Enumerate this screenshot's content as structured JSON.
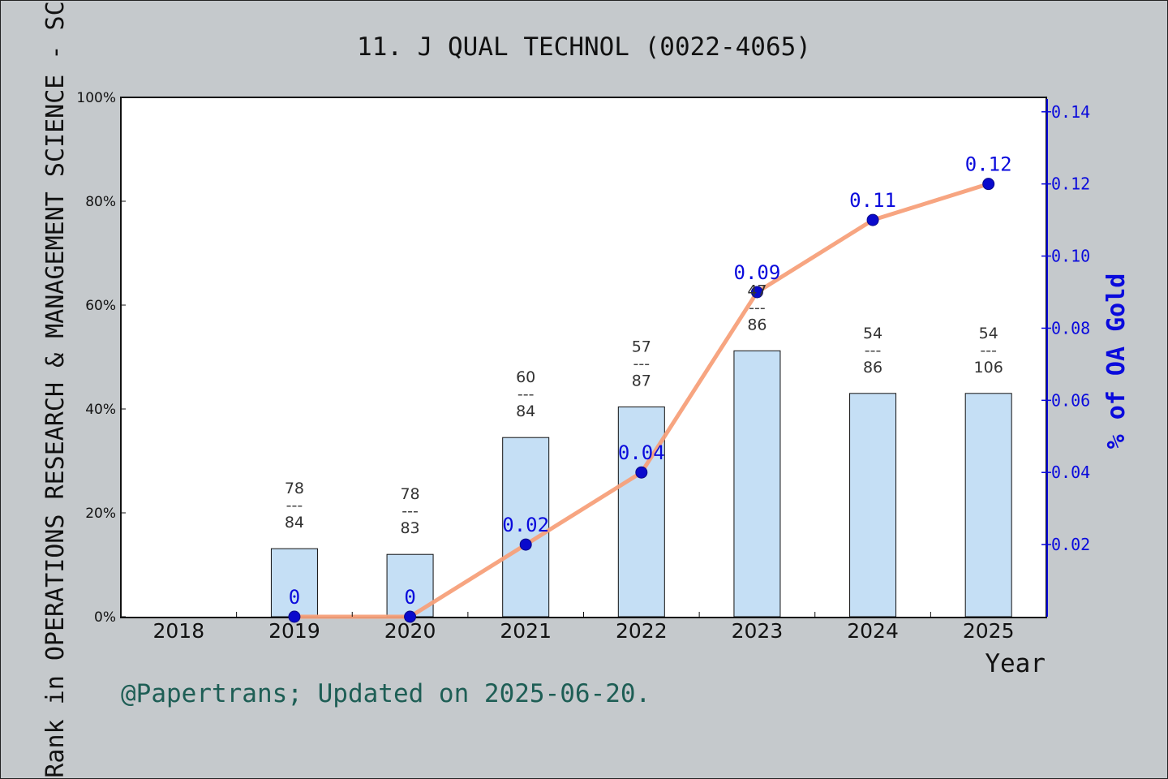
{
  "chart_data": {
    "type": "bar+line",
    "title": "11. J QUAL TECHNOL (0022-4065)",
    "xlabel": "Year",
    "ylabel_left": "Rank in OPERATIONS RESEARCH & MANAGEMENT SCIENCE - SC",
    "ylabel_right": "% of OA Gold",
    "categories": [
      "2018",
      "2019",
      "2020",
      "2021",
      "2022",
      "2023",
      "2024",
      "2025"
    ],
    "bar_series": {
      "values_percent": [
        null,
        13.1,
        12.0,
        34.5,
        40.4,
        51.2,
        43.0,
        43.0
      ],
      "rank": [
        null,
        "78",
        "78",
        "60",
        "57",
        "47",
        "54",
        "54"
      ],
      "total": [
        null,
        "84",
        "83",
        "84",
        "87",
        "86",
        "86",
        "106"
      ],
      "color": "#c5dff5"
    },
    "line_series": {
      "values": [
        null,
        0,
        0,
        0.02,
        0.04,
        0.09,
        0.11,
        0.12
      ],
      "labels": [
        null,
        "0",
        "0",
        "0.02",
        "0.04",
        "0.09",
        "0.11",
        "0.12"
      ],
      "line_color": "#f7a07a",
      "marker_color": "#0a0acc"
    },
    "ylim_left": [
      0,
      100
    ],
    "yticks_left": [
      "0%",
      "20%",
      "40%",
      "60%",
      "80%",
      "100%"
    ],
    "ylim_right": [
      0,
      0.144
    ],
    "yticks_right": [
      "0.02",
      "0.04",
      "0.06",
      "0.08",
      "0.10",
      "0.12",
      "0.14"
    ],
    "grid": false,
    "legend": "none"
  },
  "footer": {
    "note": "@Papertrans; Updated on 2025-06-20."
  },
  "colors": {
    "background": "#c5c9cc",
    "plot_background": "#ffffff",
    "right_axis": "#0a0adc",
    "footer_text": "#1e5e55"
  }
}
